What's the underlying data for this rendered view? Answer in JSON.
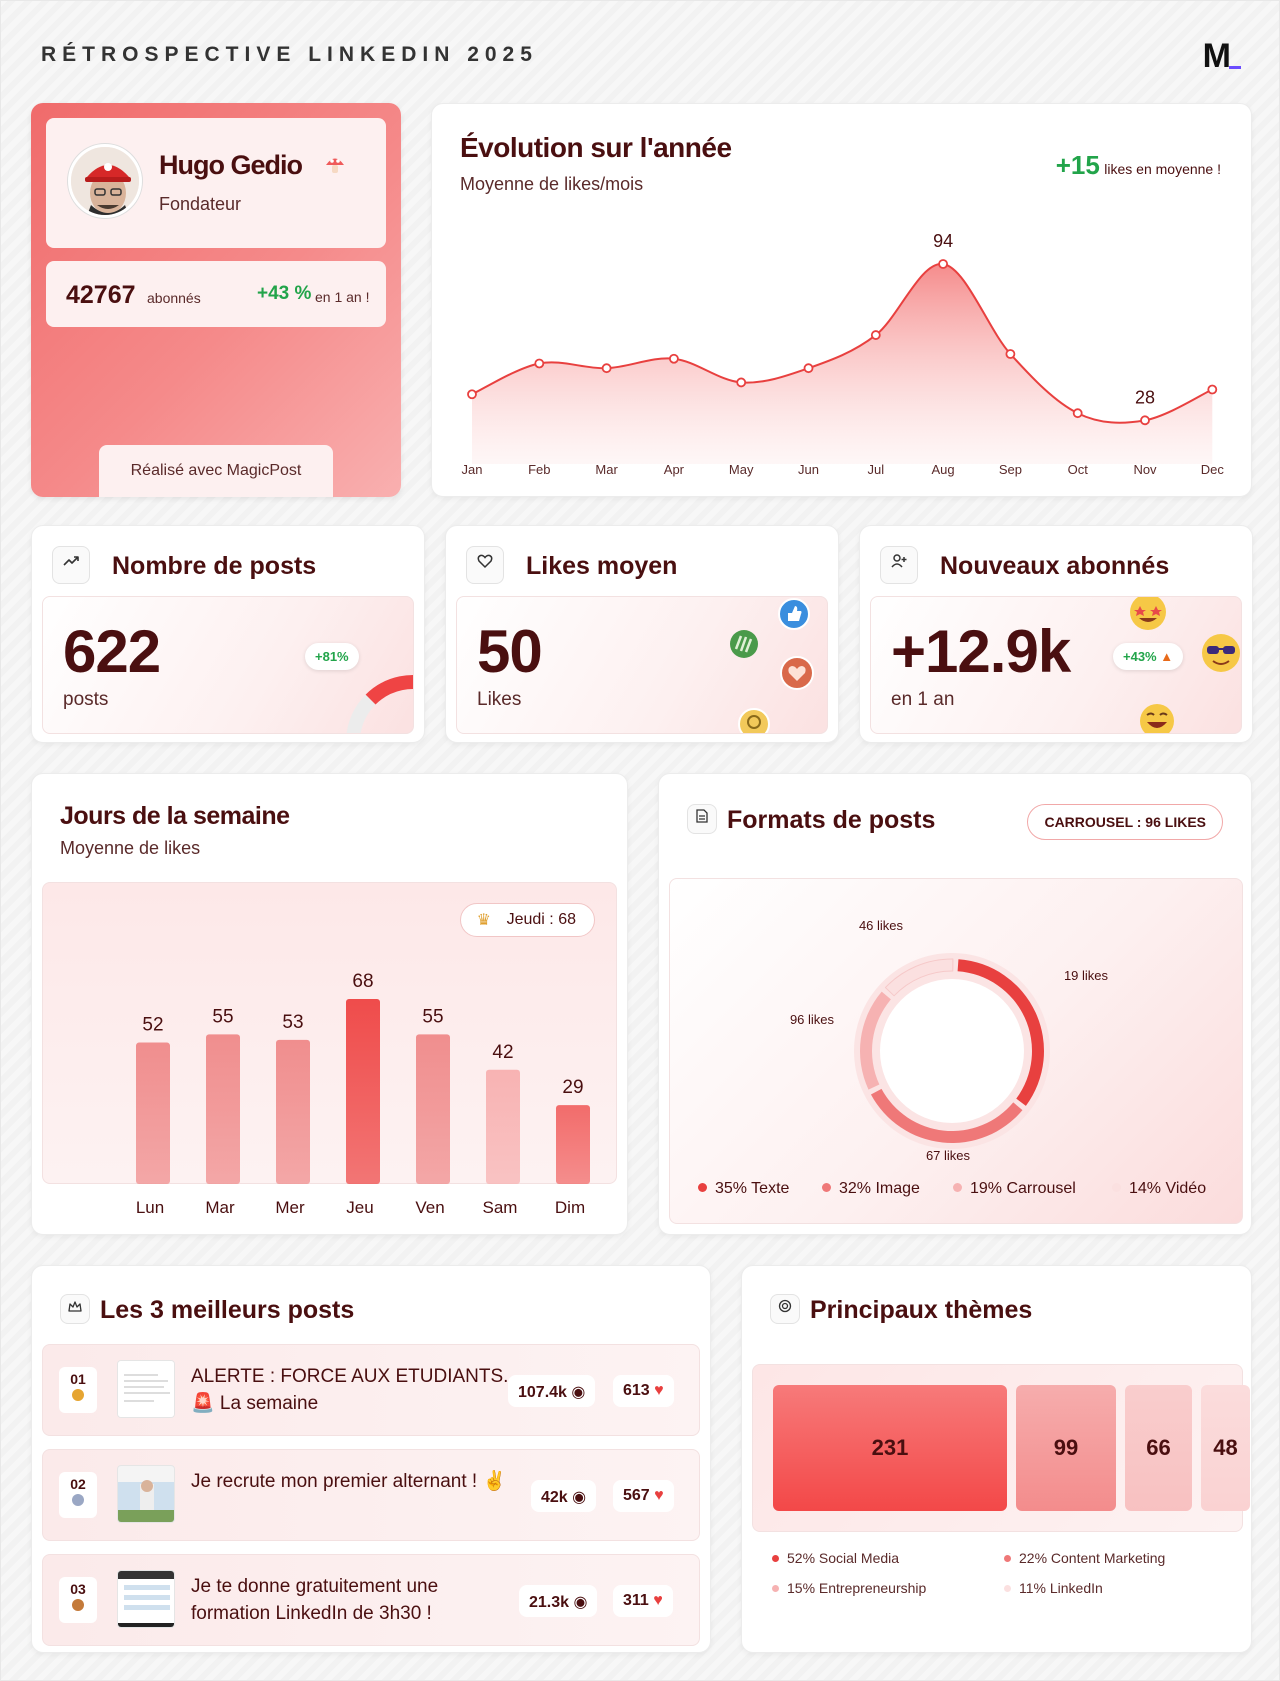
{
  "header": {
    "title": "RÉTROSPECTIVE LINKEDIN 2025",
    "logo": "M"
  },
  "profile": {
    "name": "Hugo Gedio",
    "role": "Fondateur",
    "followers": "42767",
    "followers_label": "abonnés",
    "growth": "+43 %",
    "growth_label": "en 1 an !",
    "made_with": "Réalisé avec MagicPost"
  },
  "evolution": {
    "title": "Évolution sur l'année",
    "subtitle": "Moyenne de likes/mois",
    "delta": "+15",
    "delta_label": "likes en moyenne !",
    "chart_data": {
      "type": "area",
      "categories": [
        "Jan",
        "Feb",
        "Mar",
        "Apr",
        "May",
        "Jun",
        "Jul",
        "Aug",
        "Sep",
        "Oct",
        "Nov",
        "Dec"
      ],
      "values": [
        39,
        52,
        50,
        54,
        44,
        50,
        64,
        94,
        56,
        31,
        28,
        41
      ],
      "labels": {
        "Aug": "94",
        "Nov": "28"
      },
      "color": "#e8403f"
    }
  },
  "stats": {
    "posts": {
      "title": "Nombre de posts",
      "value": "622",
      "unit": "posts",
      "growth": "+81%",
      "gauge_fraction": 0.81
    },
    "likes": {
      "title": "Likes moyen",
      "value": "50",
      "unit": "Likes"
    },
    "followers": {
      "title": "Nouveaux abonnés",
      "value": "+12.9k",
      "unit": "en 1 an",
      "growth": "+43%"
    }
  },
  "week": {
    "title": "Jours de la semaine",
    "subtitle": "Moyenne de likes",
    "badge": "Jeudi : 68",
    "chart_data": {
      "type": "bar",
      "categories": [
        "Lun",
        "Mar",
        "Mer",
        "Jeu",
        "Ven",
        "Sam",
        "Dim"
      ],
      "values": [
        52,
        55,
        53,
        68,
        55,
        42,
        29
      ],
      "ylim": [
        0,
        80
      ],
      "colors": [
        "#f08e8e",
        "#f08e8e",
        "#f08e8e",
        "#ef4c4b",
        "#f08e8e",
        "#f8b3b3",
        "#f26c6b"
      ]
    }
  },
  "formats": {
    "title": "Formats de posts",
    "pill": "CARROUSEL : 96 LIKES",
    "chart_data": {
      "type": "pie",
      "series": [
        {
          "name": "Texte",
          "percent": 35,
          "likes": "19 likes",
          "color": "#e8403f"
        },
        {
          "name": "Image",
          "percent": 32,
          "likes": "67 likes",
          "color": "#ef7878"
        },
        {
          "name": "Carrousel",
          "percent": 19,
          "likes": "96 likes",
          "color": "#f6b2b2"
        },
        {
          "name": "Vidéo",
          "percent": 14,
          "likes": "46 likes",
          "color": "#fbe0e0"
        }
      ]
    },
    "legend": [
      "35% Texte",
      "32% Image",
      "19% Carrousel",
      "14% Vidéo"
    ]
  },
  "top_posts": {
    "title": "Les 3 meilleurs posts",
    "items": [
      {
        "rank": "01",
        "text": "ALERTE : FORCE AUX ETUDIANTS. 🚨 La semaine",
        "views": "107.4k",
        "likes": "613",
        "medal": "#e6a531"
      },
      {
        "rank": "02",
        "text": "Je recrute mon premier alternant ! ✌️",
        "views": "42k",
        "likes": "567",
        "medal": "#9aa7c4"
      },
      {
        "rank": "03",
        "text": "Je te donne gratuitement une formation LinkedIn de 3h30 !",
        "views": "21.3k",
        "likes": "311",
        "medal": "#c47a3a"
      }
    ]
  },
  "themes": {
    "title": "Principaux thèmes",
    "tiles": [
      {
        "value": "231",
        "color": "#f34848",
        "color2": "#f77a7a"
      },
      {
        "value": "99",
        "color": "#f38c8c",
        "color2": "#f6adad"
      },
      {
        "value": "66",
        "color": "#f8c1c1",
        "color2": "#f9cdcd"
      },
      {
        "value": "48",
        "color": "#fad2d2",
        "color2": "#fbdcdc"
      }
    ],
    "legend": [
      "52% Social Media",
      "22% Content Marketing",
      "15% Entrepreneurship",
      "11% LinkedIn"
    ],
    "legend_colors": [
      "#e8403f",
      "#ef7878",
      "#f6b2b2",
      "#fbe0e0"
    ]
  }
}
